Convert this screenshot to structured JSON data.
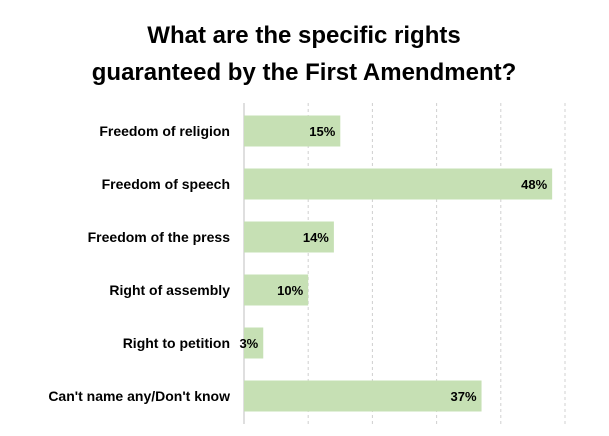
{
  "chart_data": {
    "type": "bar",
    "orientation": "horizontal",
    "title_lines": [
      "What are the specific rights",
      "guaranteed by the First Amendment?"
    ],
    "categories": [
      "Freedom of religion",
      "Freedom of speech",
      "Freedom of the press",
      "Right of assembly",
      "Right to petition",
      "Can't name any/Don't know"
    ],
    "values": [
      15,
      48,
      14,
      10,
      3,
      37
    ],
    "value_labels": [
      "15%",
      "48%",
      "14%",
      "10%",
      "3%",
      "37%"
    ],
    "xlim": [
      0,
      50
    ],
    "grid_step": 10,
    "grid": true,
    "legend": "none",
    "bar_color": "#c6e0b4"
  }
}
